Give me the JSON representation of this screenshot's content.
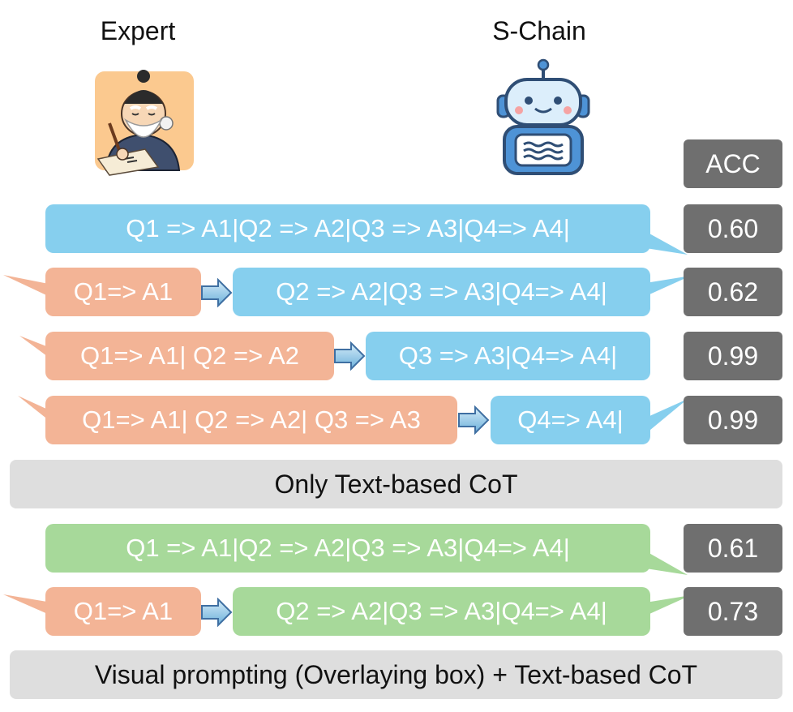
{
  "header": {
    "expert_label": "Expert",
    "schain_label": "S-Chain",
    "acc_label": "ACC"
  },
  "text_cot": {
    "rows": [
      {
        "prefix": "",
        "rest": "Q1 => A1|Q2 => A2|Q3 => A3|Q4=> A4|",
        "acc": "0.60"
      },
      {
        "prefix": "Q1=> A1",
        "rest": "Q2 => A2|Q3 => A3|Q4=> A4|",
        "acc": "0.62"
      },
      {
        "prefix": "Q1=> A1| Q2 => A2",
        "rest": "Q3 => A3|Q4=> A4|",
        "acc": "0.99"
      },
      {
        "prefix": "Q1=> A1| Q2 => A2| Q3 => A3",
        "rest": "Q4=> A4|",
        "acc": "0.99"
      }
    ],
    "caption": "Only Text-based CoT"
  },
  "visual_cot": {
    "rows": [
      {
        "prefix": "",
        "rest": "Q1 => A1|Q2 => A2|Q3 => A3|Q4=> A4|",
        "acc": "0.61"
      },
      {
        "prefix": "Q1=> A1",
        "rest": "Q2 => A2|Q3 => A3|Q4=> A4|",
        "acc": "0.73"
      }
    ],
    "caption": "Visual prompting (Overlaying box) + Text-based CoT"
  },
  "colors": {
    "expert": "#f3b496",
    "schain_text": "#86cfee",
    "schain_visual": "#a7d99a",
    "acc": "#6f6f6f",
    "caption_bg": "#dedede"
  },
  "icons": {
    "expert": "elderly-scholar-writing-icon",
    "schain": "robot-icon",
    "flow_arrow": "right-arrow-icon"
  }
}
